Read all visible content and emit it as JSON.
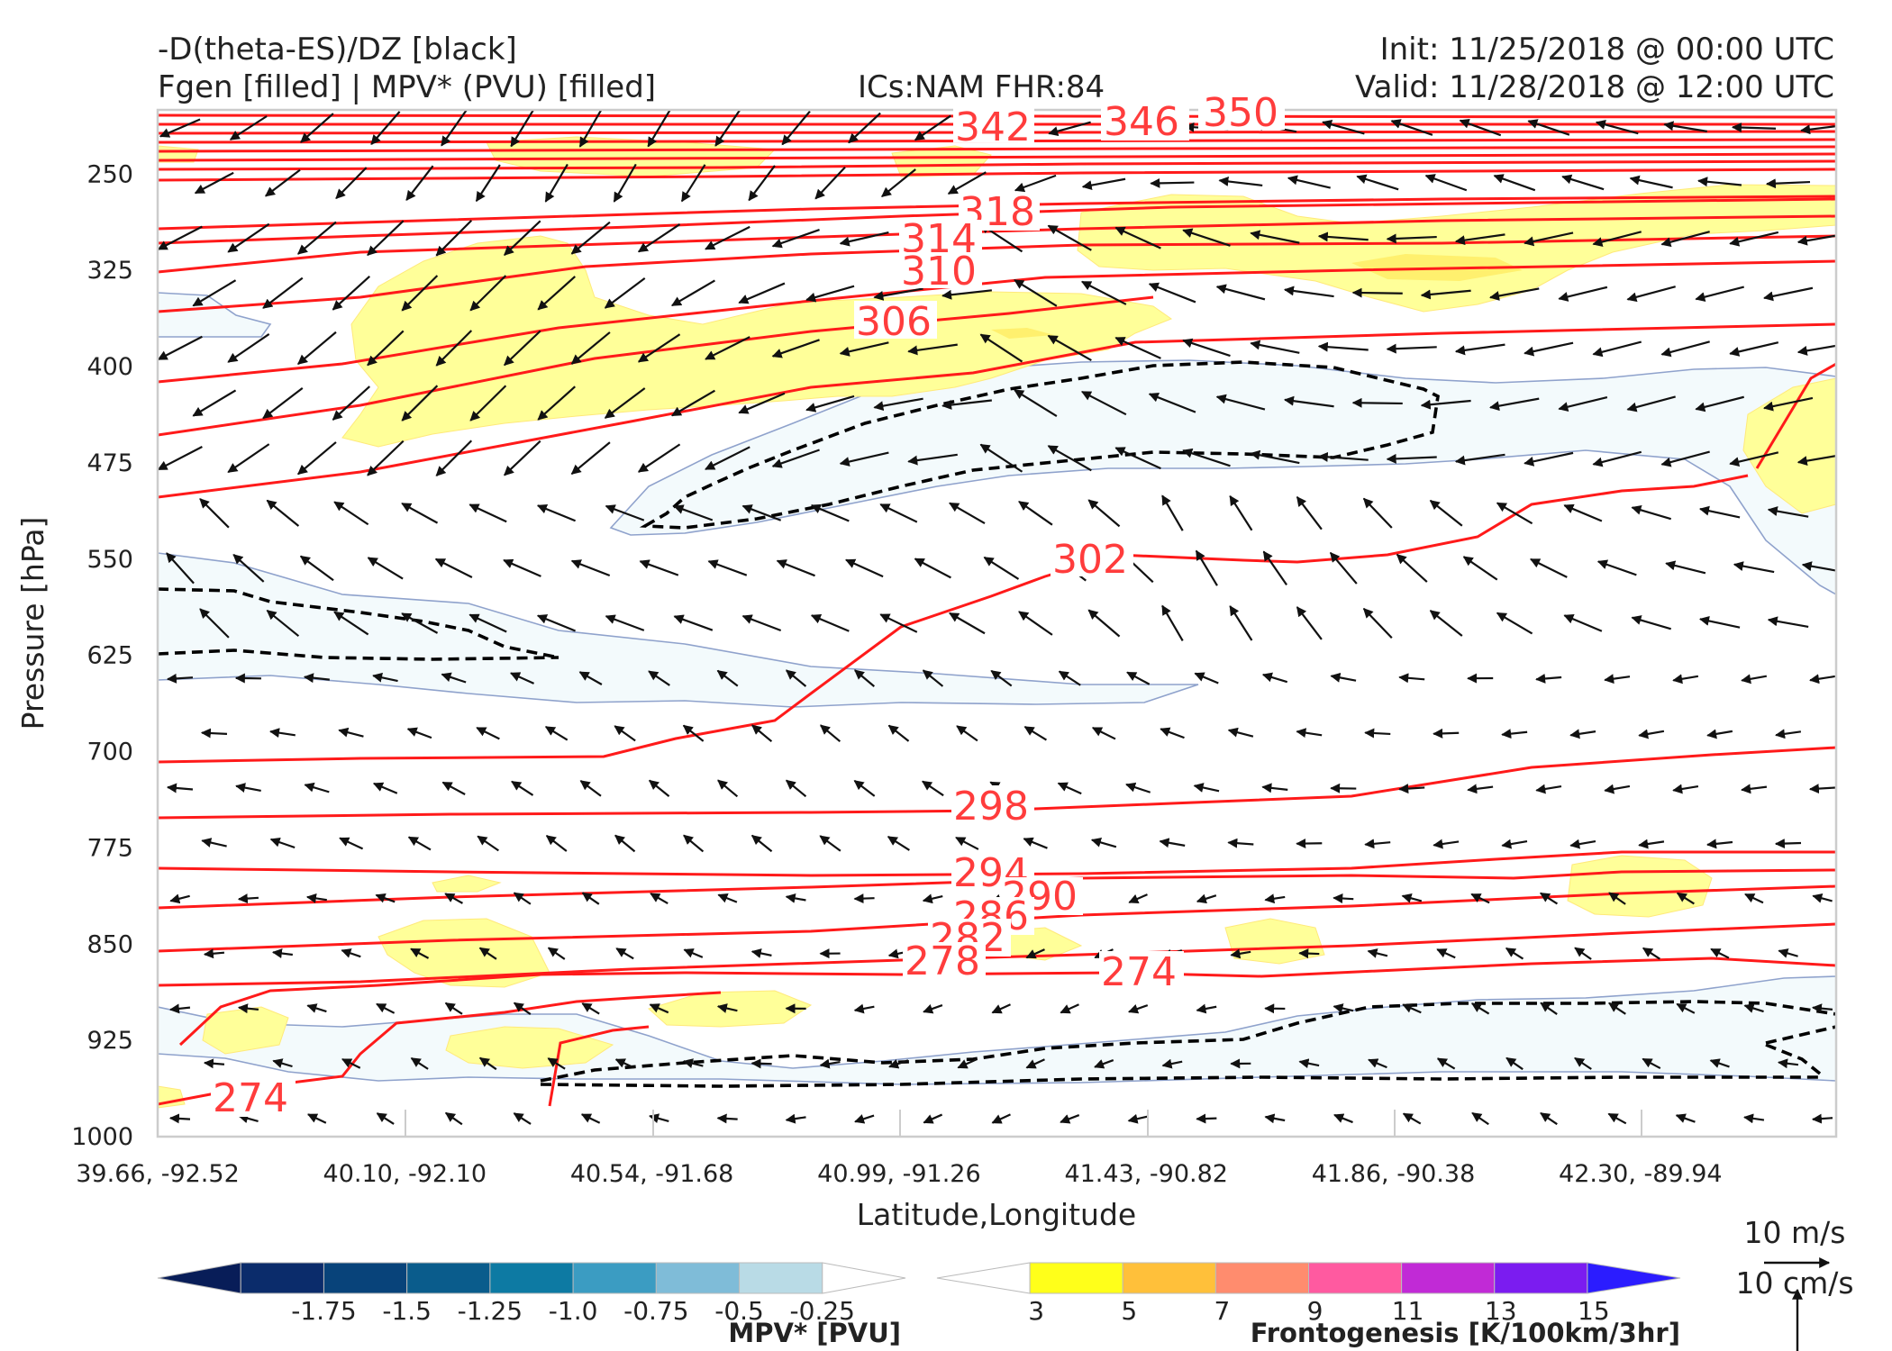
{
  "header": {
    "line1_left": "-D(theta-ES)/DZ [black]",
    "line2_left": "Fgen [filled] | MPV* (PVU) [filled]",
    "center": "ICs:NAM FHR:84",
    "init": "Init: 11/25/2018 @ 00:00 UTC",
    "valid": "Valid: 11/28/2018 @ 12:00 UTC"
  },
  "chart_data": {
    "type": "cross-section",
    "xlabel": "Latitude,Longitude",
    "ylabel": "Pressure [hPa]",
    "x_ticks": [
      "39.66, -92.52",
      "40.10, -92.10",
      "40.54, -91.68",
      "40.99, -91.26",
      "41.43, -90.82",
      "41.86, -90.38",
      "42.30, -89.94"
    ],
    "y_ticks": [
      250,
      325,
      400,
      475,
      550,
      625,
      700,
      775,
      850,
      925,
      1000
    ],
    "ylim": [
      1000,
      200
    ],
    "contour_labels": [
      {
        "text": "342"
      },
      {
        "text": "346"
      },
      {
        "text": "350"
      },
      {
        "text": "318"
      },
      {
        "text": "314"
      },
      {
        "text": "310"
      },
      {
        "text": "306"
      },
      {
        "text": "302"
      },
      {
        "text": "298"
      },
      {
        "text": "294"
      },
      {
        "text": "290"
      },
      {
        "text": "286"
      },
      {
        "text": "282"
      },
      {
        "text": "278"
      },
      {
        "text": "274"
      },
      {
        "text": "274"
      }
    ],
    "colors": {
      "theta_es": "#ff1a1a",
      "theta_es_label": "#ff4a4a",
      "mpv_fill": "#f3fafc",
      "mpv_edge": "#8fa2cc",
      "fgen_fill": "#ffff99",
      "fgen_fill_strong": "#fff06e",
      "ddz_contour": "#000000",
      "wind_vector": "#111111"
    },
    "mpv_colorbar": {
      "title": "MPV* [PVU]",
      "tick_labels": [
        "-1.75",
        "-1.5",
        "-1.25",
        "-1.0",
        "-0.75",
        "-0.5",
        "-0.25"
      ],
      "colors": [
        "#081d58",
        "#0b2c6b",
        "#08437a",
        "#0a5c8c",
        "#0d7aa3",
        "#3b9cc2",
        "#7fbcd8",
        "#b9dbe6",
        "#ffffff"
      ]
    },
    "fgen_colorbar": {
      "title": "Frontogenesis [K/100km/3hr]",
      "tick_labels": [
        "3",
        "5",
        "7",
        "9",
        "11",
        "13",
        "15"
      ],
      "colors": [
        "#ffffff",
        "#ffff1a",
        "#ffc03a",
        "#ff8c6e",
        "#ff5aa0",
        "#c12ad6",
        "#7b1cf0",
        "#2b1cff"
      ]
    },
    "wind_key": {
      "horizontal": "10 m/s",
      "vertical": "10 cm/s"
    }
  }
}
